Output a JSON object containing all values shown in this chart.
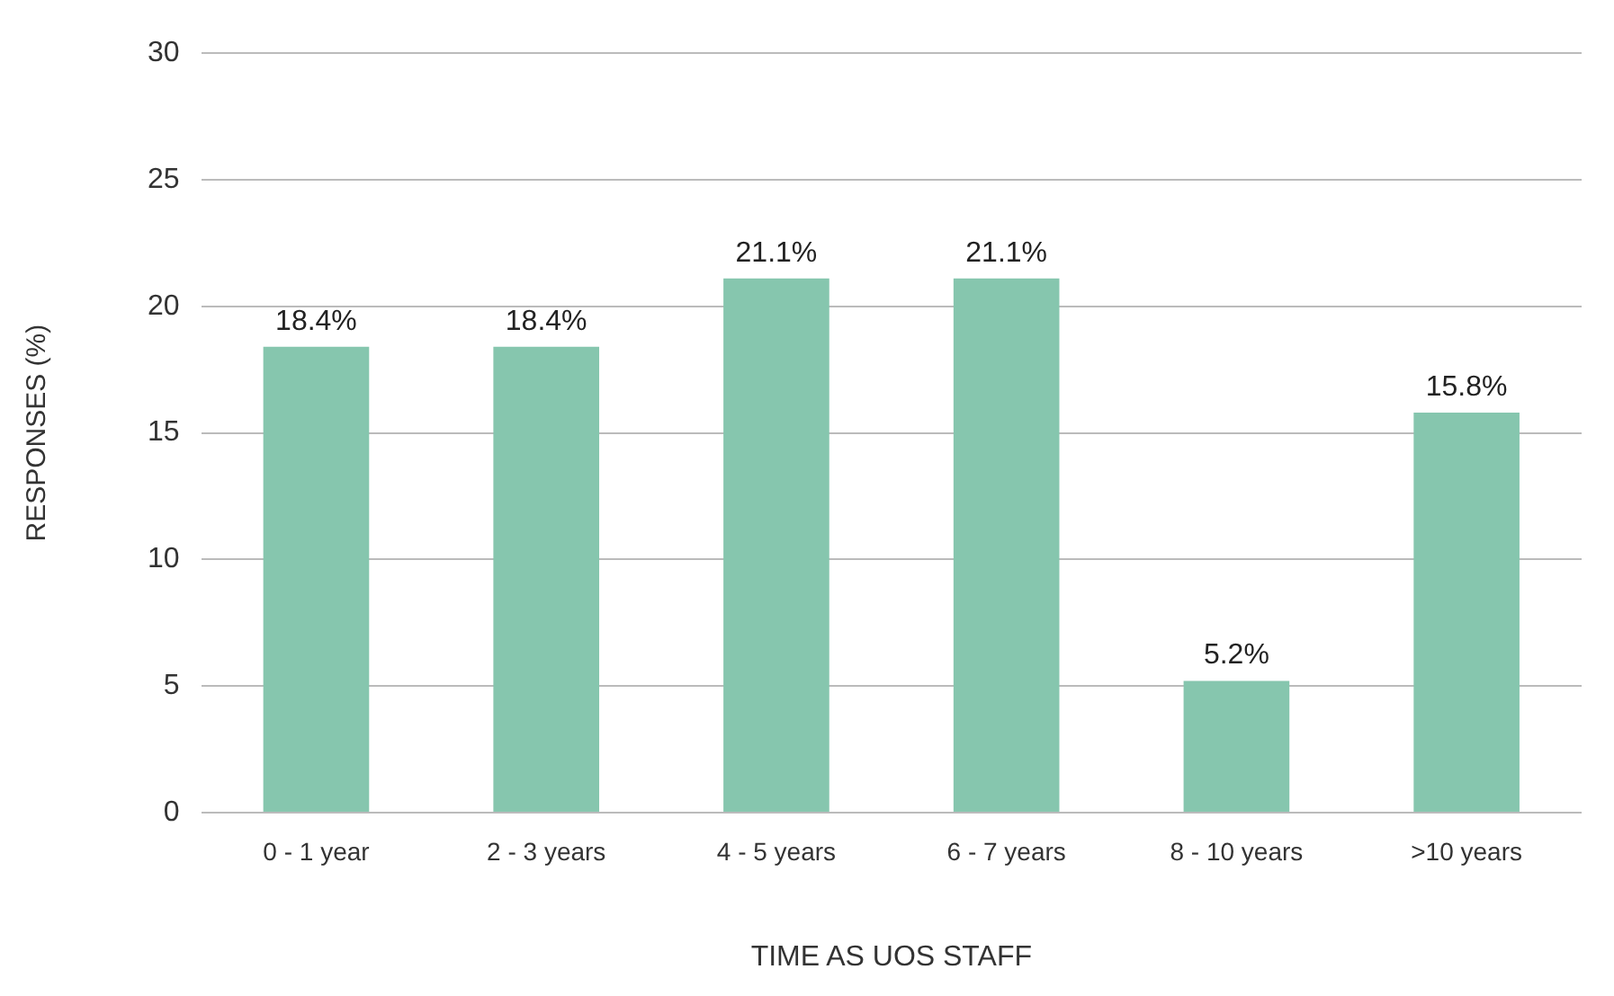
{
  "chart_data": {
    "type": "bar",
    "xlabel": "TIME AS UOS STAFF",
    "ylabel": "RESPONSES (%)",
    "categories": [
      "0 - 1 year",
      "2 - 3 years",
      "4 - 5 years",
      "6 - 7 years",
      "8 - 10 years",
      ">10 years"
    ],
    "values": [
      18.4,
      18.4,
      21.1,
      21.1,
      5.2,
      15.8
    ],
    "value_labels": [
      "18.4%",
      "18.4%",
      "21.1%",
      "21.1%",
      "5.2%",
      "15.8%"
    ],
    "color": "#86c6ae",
    "ylim": [
      0,
      30
    ],
    "yticks": [
      0,
      5,
      10,
      15,
      20,
      25,
      30
    ],
    "grid": "y",
    "legend": false
  }
}
